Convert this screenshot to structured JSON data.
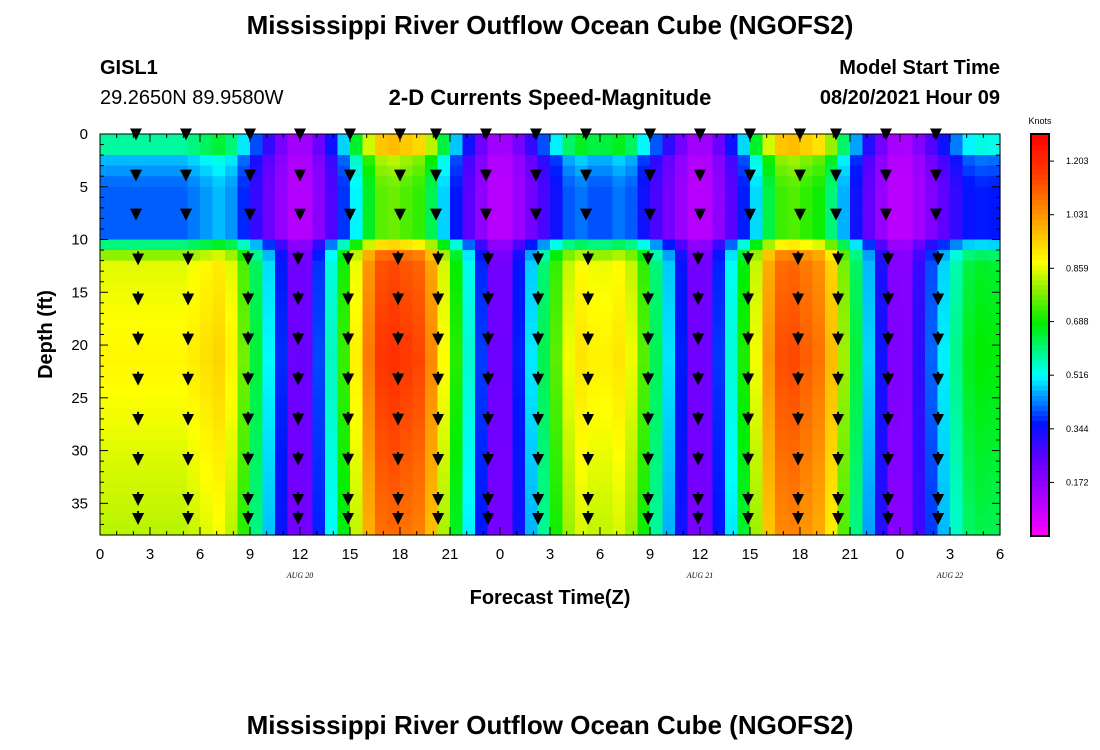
{
  "page": {
    "title_top": "Mississippi River Outflow Ocean Cube (NGOFS2)",
    "title_bottom": "Mississippi River Outflow Ocean Cube (NGOFS2)",
    "station_id": "GISL1",
    "station_coords": "29.2650N  89.9580W",
    "subtitle": "2-D Currents Speed-Magnitude",
    "model_start_label": "Model Start Time",
    "model_start_value": "08/20/2021 Hour 09"
  },
  "chart_data": {
    "type": "heatmap",
    "title": "2-D Currents Speed-Magnitude",
    "xlabel": "Forecast Time(Z)",
    "ylabel": "Depth (ft)",
    "x_unit": "hours from 2021-08-20 00Z",
    "xlim": [
      0,
      54
    ],
    "ylim": [
      0,
      38
    ],
    "y_inverted": true,
    "x_ticks": [
      0,
      3,
      6,
      9,
      12,
      15,
      18,
      21,
      24,
      27,
      30,
      33,
      36,
      39,
      42,
      45,
      48,
      51,
      54
    ],
    "x_tick_labels": [
      "0",
      "3",
      "6",
      "9",
      "12",
      "15",
      "18",
      "21",
      "0",
      "3",
      "6",
      "9",
      "12",
      "15",
      "18",
      "21",
      "0",
      "3",
      "6"
    ],
    "y_ticks": [
      0,
      5,
      10,
      15,
      20,
      25,
      30,
      35
    ],
    "y_tick_labels": [
      "0",
      "5",
      "10",
      "15",
      "20",
      "25",
      "30",
      "35"
    ],
    "date_labels": [
      {
        "x": 12,
        "text": "AUG 20"
      },
      {
        "x": 36,
        "text": "AUG 21"
      },
      {
        "x": 51,
        "text": "AUG 22"
      }
    ],
    "colorbar": {
      "title": "Knots",
      "min": 0.0,
      "max": 1.29,
      "ticks": [
        0.172,
        0.344,
        0.516,
        0.688,
        0.859,
        1.031,
        1.203
      ],
      "tick_labels": [
        "0.172",
        "0.344",
        "0.516",
        "0.688",
        "0.859",
        "1.031",
        "1.203"
      ]
    },
    "speed_field": {
      "description_of_model": "speed(t,depth) = amplitude(t) * depth_profile; low near slack tide",
      "slack_times": [
        12,
        24,
        36,
        48
      ],
      "peak_times": [
        5,
        17.5,
        30,
        41.5,
        53
      ],
      "peak_speeds_deep": [
        0.86,
        1.16,
        0.86,
        1.12,
        0.65
      ],
      "peak_speeds_surface": [
        0.55,
        0.95,
        0.6,
        0.95,
        0.5
      ],
      "peak_speeds_mid": [
        0.38,
        0.74,
        0.36,
        0.72,
        0.33
      ]
    },
    "vector_columns_x": [
      3,
      6,
      9,
      12,
      15,
      18,
      21,
      24,
      27,
      30,
      33,
      36,
      39,
      42,
      45,
      48,
      51,
      54
    ],
    "vector_rows_depth": [
      0.2,
      4.1,
      7.8,
      11.6,
      15.4,
      19.2,
      23.0,
      26.8,
      30.6,
      34.4,
      36.2
    ]
  }
}
